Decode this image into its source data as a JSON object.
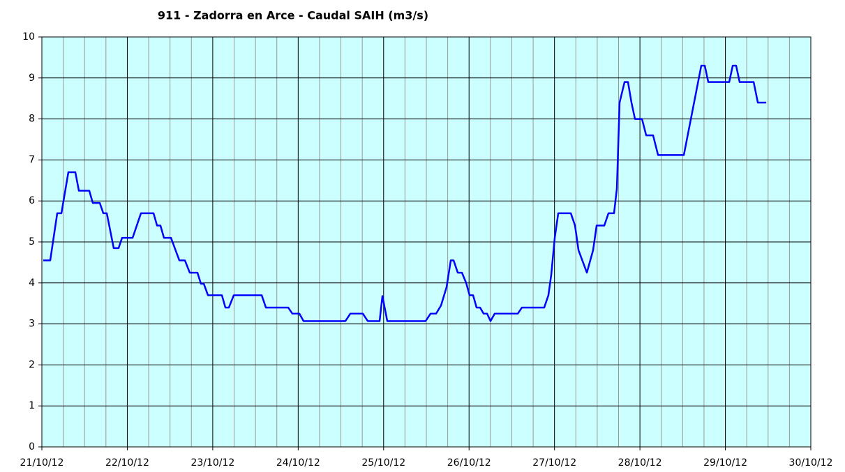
{
  "chart_data": {
    "type": "line",
    "title": "911 - Zadorra en Arce - Caudal SAIH (m3/s)",
    "xlim": [
      21,
      30
    ],
    "xticks": [
      {
        "value": 21,
        "label": "21/10/12"
      },
      {
        "value": 22,
        "label": "22/10/12"
      },
      {
        "value": 23,
        "label": "23/10/12"
      },
      {
        "value": 24,
        "label": "24/10/12"
      },
      {
        "value": 25,
        "label": "25/10/12"
      },
      {
        "value": 26,
        "label": "26/10/12"
      },
      {
        "value": 27,
        "label": "27/10/12"
      },
      {
        "value": 28,
        "label": "28/10/12"
      },
      {
        "value": 29,
        "label": "29/10/12"
      },
      {
        "value": 30,
        "label": "30/10/12"
      }
    ],
    "ylim": [
      0,
      10
    ],
    "yticks": [
      0,
      1,
      2,
      3,
      4,
      5,
      6,
      7,
      8,
      9,
      10
    ],
    "grid": true,
    "background": "#ccffff",
    "series": [
      {
        "color": "#0000ff",
        "x": [
          21.016,
          21.098,
          21.18,
          21.229,
          21.31,
          21.392,
          21.433,
          21.555,
          21.596,
          21.678,
          21.719,
          21.76,
          21.817,
          21.841,
          21.898,
          21.939,
          22.062,
          22.16,
          22.307,
          22.348,
          22.388,
          22.429,
          22.511,
          22.609,
          22.674,
          22.731,
          22.821,
          22.862,
          22.895,
          22.944,
          23.107,
          23.148,
          23.189,
          23.246,
          23.573,
          23.622,
          23.883,
          23.932,
          24.014,
          24.063,
          24.553,
          24.61,
          24.757,
          24.814,
          24.953,
          24.986,
          25.043,
          25.492,
          25.549,
          25.614,
          25.672,
          25.737,
          25.786,
          25.819,
          25.868,
          25.917,
          25.966,
          26.006,
          26.047,
          26.088,
          26.129,
          26.17,
          26.211,
          26.251,
          26.3,
          26.57,
          26.619,
          26.88,
          26.929,
          26.962,
          27.003,
          27.044,
          27.191,
          27.24,
          27.281,
          27.379,
          27.452,
          27.493,
          27.583,
          27.632,
          27.697,
          27.73,
          27.762,
          27.82,
          27.86,
          27.901,
          27.942,
          28.024,
          28.073,
          28.154,
          28.212,
          28.514,
          28.718,
          28.759,
          28.8,
          29.045,
          29.086,
          29.126,
          29.167,
          29.331,
          29.38,
          29.478
        ],
        "values": [
          4.55,
          4.55,
          5.7,
          5.7,
          6.7,
          6.7,
          6.25,
          6.25,
          5.95,
          5.95,
          5.7,
          5.7,
          5.1,
          4.85,
          4.85,
          5.1,
          5.1,
          5.7,
          5.7,
          5.4,
          5.4,
          5.1,
          5.1,
          4.55,
          4.55,
          4.25,
          4.25,
          3.98,
          3.98,
          3.7,
          3.7,
          3.4,
          3.4,
          3.7,
          3.7,
          3.4,
          3.4,
          3.25,
          3.25,
          3.07,
          3.07,
          3.25,
          3.25,
          3.07,
          3.07,
          3.68,
          3.07,
          3.07,
          3.25,
          3.25,
          3.45,
          3.9,
          4.55,
          4.55,
          4.25,
          4.25,
          4.0,
          3.7,
          3.7,
          3.4,
          3.4,
          3.25,
          3.25,
          3.07,
          3.25,
          3.25,
          3.4,
          3.4,
          3.7,
          4.2,
          5.1,
          5.7,
          5.7,
          5.4,
          4.8,
          4.25,
          4.8,
          5.4,
          5.4,
          5.7,
          5.7,
          6.3,
          8.4,
          8.9,
          8.9,
          8.4,
          8.0,
          8.0,
          7.6,
          7.6,
          7.12,
          7.12,
          9.3,
          9.3,
          8.9,
          8.9,
          9.3,
          9.3,
          8.9,
          8.9,
          8.4,
          8.4
        ]
      }
    ]
  }
}
